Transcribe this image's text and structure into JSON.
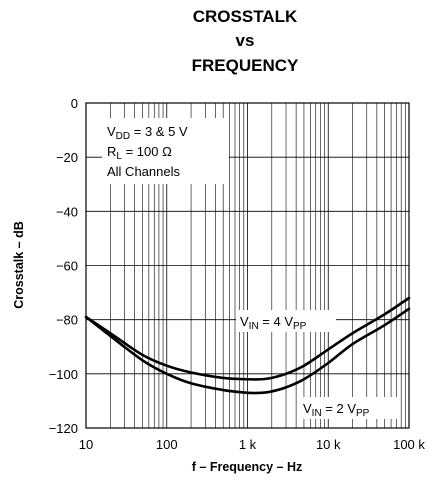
{
  "chart_data": {
    "type": "line",
    "title_lines": [
      "CROSSTALK",
      "vs",
      "FREQUENCY"
    ],
    "xlabel": "f – Frequency – Hz",
    "ylabel": "Crosstalk – dB",
    "xscale": "log",
    "xlim": [
      10,
      100000
    ],
    "ylim": [
      -120,
      0
    ],
    "x_ticks": [
      10,
      100,
      1000,
      10000,
      100000
    ],
    "x_tick_labels": [
      "10",
      "100",
      "1 k",
      "10 k",
      "100 k"
    ],
    "y_ticks": [
      0,
      -20,
      -40,
      -60,
      -80,
      -100,
      -120
    ],
    "y_tick_labels": [
      "0",
      "−20",
      "−40",
      "−60",
      "−80",
      "−100",
      "−120"
    ],
    "grid": true,
    "conditions": {
      "vdd": {
        "main": "V",
        "sub": "DD",
        "rest": " = 3 & 5 V"
      },
      "rl": {
        "main": "R",
        "sub": "L",
        "rest": " = 100 Ω"
      },
      "channels": "All Channels"
    },
    "series": [
      {
        "label": {
          "main1": "V",
          "sub1": "IN",
          "mid": " = 4 V",
          "sub2": "PP"
        },
        "label_pos": "upper",
        "x": [
          10,
          20,
          50,
          100,
          200,
          500,
          1000,
          1500,
          2000,
          3000,
          5000,
          10000,
          20000,
          50000,
          100000
        ],
        "y": [
          -79,
          -85,
          -93,
          -97,
          -99.5,
          -101.5,
          -102,
          -102,
          -101.5,
          -100,
          -97,
          -91,
          -85,
          -78,
          -72
        ]
      },
      {
        "label": {
          "main1": "V",
          "sub1": "IN",
          "mid": " = 2 V",
          "sub2": "PP"
        },
        "label_pos": "lower",
        "x": [
          10,
          20,
          50,
          100,
          200,
          500,
          1000,
          1500,
          2000,
          3000,
          5000,
          10000,
          20000,
          50000,
          100000
        ],
        "y": [
          -79,
          -86,
          -95,
          -100,
          -103.5,
          -106,
          -107,
          -107,
          -106.5,
          -105,
          -102,
          -96,
          -89,
          -82,
          -76
        ]
      }
    ]
  }
}
